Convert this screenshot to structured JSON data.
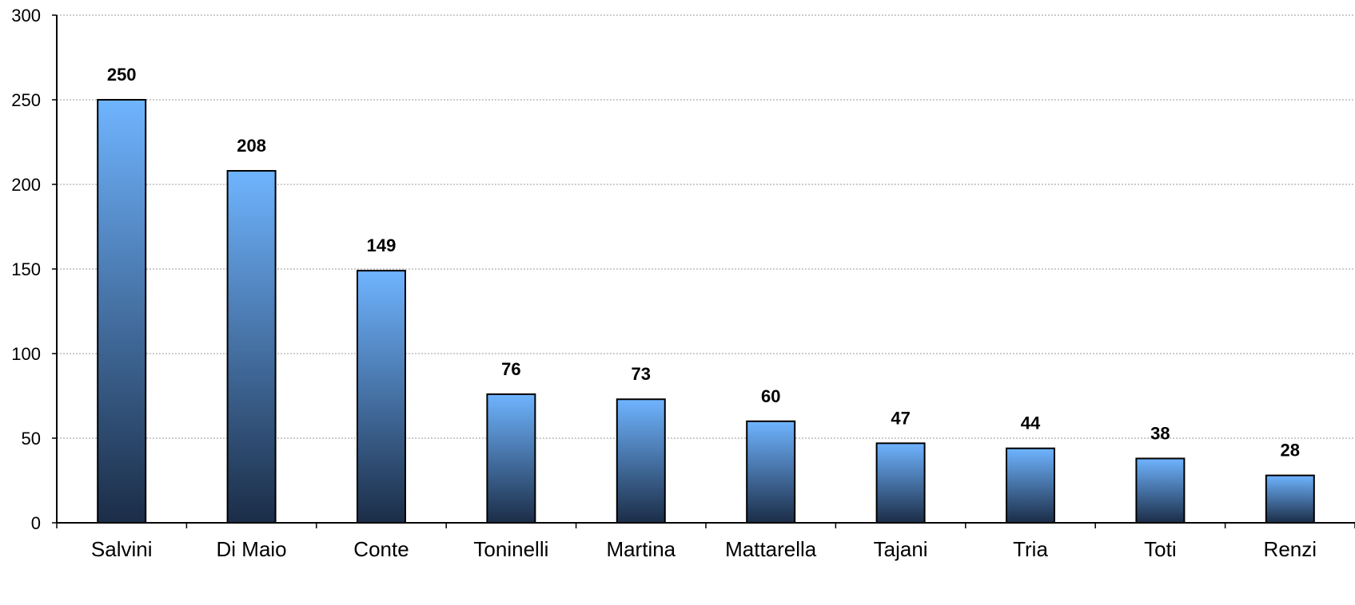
{
  "chart_data": {
    "type": "bar",
    "title": "",
    "xlabel": "",
    "ylabel": "",
    "ylim": [
      0,
      300
    ],
    "yticks": [
      0,
      50,
      100,
      150,
      200,
      250,
      300
    ],
    "grid": "horizontal dotted",
    "legend": "none",
    "categories": [
      "Salvini",
      "Di Maio",
      "Conte",
      "Toninelli",
      "Martina",
      "Mattarella",
      "Tajani",
      "Tria",
      "Toti",
      "Renzi"
    ],
    "values": [
      250,
      208,
      149,
      76,
      73,
      60,
      47,
      44,
      38,
      28
    ],
    "data_labels": [
      "250",
      "208",
      "149",
      "76",
      "73",
      "60",
      "47",
      "44",
      "38",
      "28"
    ],
    "colors": {
      "bar_top": "#6fb4ff",
      "bar_bottom": "#1b2d47",
      "bar_outline": "#000000",
      "grid": "#9a9a9a"
    }
  }
}
